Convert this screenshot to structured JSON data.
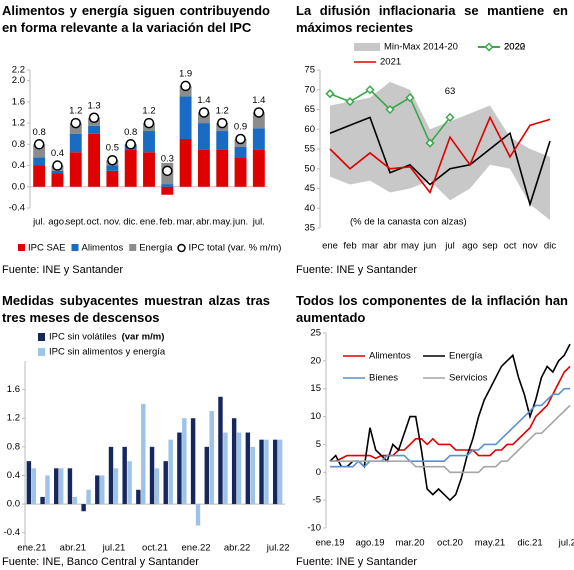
{
  "chart_data": [
    {
      "type": "bar",
      "stacked": true,
      "title": "Alimentos y energía siguen contribuyendo en forma relevante a la variación del IPC",
      "categories": [
        "jul.",
        "ago.",
        "sept.",
        "oct.",
        "nov.",
        "dic.",
        "ene.",
        "feb.",
        "mar.",
        "abr.",
        "may.",
        "jun.",
        "jul."
      ],
      "series": [
        {
          "name": "IPC SAE",
          "color": "#e00000",
          "values": [
            0.4,
            0.25,
            0.65,
            1.0,
            0.3,
            0.7,
            0.65,
            -0.15,
            0.9,
            0.7,
            0.7,
            0.55,
            0.7
          ]
        },
        {
          "name": "Alimentos",
          "color": "#1a6bc4",
          "values": [
            0.15,
            0.05,
            0.35,
            0.15,
            0.1,
            0.1,
            0.4,
            0.05,
            0.8,
            0.5,
            0.35,
            0.2,
            0.4
          ]
        },
        {
          "name": "Energía",
          "color": "#8c8c8c",
          "values": [
            0.25,
            0.1,
            0.2,
            0.15,
            0.1,
            0.0,
            0.15,
            0.4,
            0.2,
            0.2,
            0.15,
            0.15,
            0.3
          ]
        }
      ],
      "total": {
        "name": "IPC total (var. % m/m)",
        "values": [
          0.8,
          0.4,
          1.2,
          1.3,
          0.5,
          0.8,
          1.2,
          0.3,
          1.9,
          1.4,
          1.2,
          0.9,
          1.4
        ]
      },
      "ylim": [
        -0.4,
        2.2
      ],
      "yticks": [
        -0.4,
        {
          "value": 0,
          "label": "0.0"
        },
        0.4,
        0.8,
        1.2,
        1.6,
        {
          "value": 2,
          "label": "2.0"
        },
        2.2
      ],
      "source": "Fuente: INE y Santander"
    },
    {
      "type": "line",
      "title": "La difusión inflacionaria se mantiene en máximos recientes",
      "categories": [
        "ene",
        "feb",
        "mar",
        "abr",
        "may",
        "jun",
        "jul",
        "ago",
        "sep",
        "oct",
        "nov",
        "dic"
      ],
      "band": {
        "name": "Min-Max 2014-20",
        "color": "#c8c8c8",
        "low": [
          48,
          46,
          47,
          44,
          45,
          47,
          42,
          45,
          51,
          50,
          41,
          37
        ],
        "high": [
          66,
          67,
          68,
          72,
          70,
          60,
          62,
          64,
          66,
          58,
          55,
          53
        ]
      },
      "series": [
        {
          "name": "2020",
          "color": "#000000",
          "marker": false,
          "values": [
            59,
            61,
            63,
            49,
            51,
            46,
            50,
            51,
            55,
            59,
            41,
            57
          ]
        },
        {
          "name": "2021",
          "color": "#e00000",
          "marker": false,
          "values": [
            55,
            50,
            54,
            50,
            50.5,
            44,
            58,
            51,
            63,
            53,
            61,
            62.5
          ]
        },
        {
          "name": "2022",
          "color": "#3aa84a",
          "marker": true,
          "values": [
            69,
            67,
            70,
            65,
            68,
            56.5,
            63,
            null,
            null,
            null,
            null,
            null
          ]
        }
      ],
      "annotation": {
        "text": "63",
        "series": 2,
        "index": 6
      },
      "note": "(% de la canasta con alzas)",
      "ylim": [
        35,
        75
      ],
      "yticks": [
        35,
        40,
        45,
        50,
        55,
        60,
        65,
        70,
        75
      ],
      "source": "Fuente: INE y Santander"
    },
    {
      "type": "bar",
      "stacked": false,
      "title": "Medidas subyacentes muestran alzas tras tres meses de descensos",
      "categories": [
        "ene.21",
        null,
        null,
        "abr.21",
        null,
        null,
        "jul.21",
        null,
        null,
        "oct.21",
        null,
        null,
        "ene.22",
        null,
        null,
        "abr.22",
        null,
        null,
        "jul.22"
      ],
      "series": [
        {
          "name": "IPC sin volátiles",
          "color": "#16275e",
          "values": [
            0.6,
            0.1,
            0.5,
            0.5,
            -0.1,
            0.4,
            0.8,
            0.8,
            0.2,
            0.8,
            0.6,
            1.0,
            1.2,
            0.8,
            1.5,
            1.2,
            1.0,
            0.9,
            0.9
          ]
        },
        {
          "name": "IPC sin alimentos y energía",
          "color": "#9dc3e6",
          "values": [
            0.5,
            0.4,
            0.5,
            0.1,
            0.2,
            0.4,
            0.5,
            0.6,
            1.4,
            0.5,
            0.9,
            1.2,
            -0.3,
            1.3,
            1.0,
            1.0,
            0.8,
            0.9,
            0.9
          ]
        }
      ],
      "legend_unit": "(var m/m)",
      "ylim": [
        -0.6,
        2.0
      ],
      "yticks": [
        -0.4,
        {
          "value": 0,
          "label": "0.0"
        },
        0.4,
        0.8,
        1.2,
        1.6
      ],
      "source": "Fuente: INE, Banco Central y Santander"
    },
    {
      "type": "line",
      "title": "Todos los componentes de la inflación han aumentado",
      "categories": [
        "ene.19",
        null,
        null,
        null,
        null,
        null,
        null,
        "ago.19",
        null,
        null,
        null,
        null,
        null,
        null,
        "mar.20",
        null,
        null,
        null,
        null,
        null,
        null,
        "oct.20",
        null,
        null,
        null,
        null,
        null,
        null,
        "may.21",
        null,
        null,
        null,
        null,
        null,
        null,
        "dic.21",
        null,
        null,
        null,
        null,
        null,
        null,
        "jul.22"
      ],
      "series": [
        {
          "name": "Alimentos",
          "color": "#e00000",
          "values": [
            2,
            2,
            2.5,
            3,
            3,
            3,
            3,
            3,
            2.5,
            3,
            3,
            3,
            4,
            4,
            5,
            6,
            6,
            5,
            6,
            5,
            5,
            5,
            4,
            4,
            4,
            4,
            3,
            3,
            3,
            4,
            4,
            5,
            5,
            6,
            7,
            8,
            10,
            11,
            12,
            14,
            16,
            18,
            19
          ]
        },
        {
          "name": "Energía",
          "color": "#000000",
          "values": [
            2,
            3,
            1,
            1,
            2,
            2,
            1,
            8,
            4,
            3,
            2,
            5,
            4,
            7,
            10,
            10,
            4,
            -3,
            -4,
            -3,
            -4,
            -5,
            -4,
            -1,
            3,
            6,
            10,
            13,
            15,
            17,
            19,
            20,
            21,
            17,
            14,
            10,
            13,
            17,
            19,
            18,
            20,
            21,
            23
          ]
        },
        {
          "name": "Bienes",
          "color": "#5b8fd0",
          "values": [
            1,
            1,
            1,
            1,
            1,
            2,
            1,
            2,
            2,
            2,
            3,
            3,
            3,
            3,
            2,
            2,
            2,
            2,
            2,
            2,
            2,
            3,
            3,
            3,
            3,
            4,
            4,
            5,
            5,
            5,
            6,
            7,
            8,
            9,
            10,
            11,
            12,
            12,
            13,
            14,
            14,
            15,
            15
          ]
        },
        {
          "name": "Servicios",
          "color": "#a6a6a6",
          "values": [
            2,
            2,
            2,
            2,
            2,
            2,
            2,
            2,
            2,
            2,
            2,
            2,
            2,
            2,
            2,
            1,
            1,
            1,
            1,
            1,
            1,
            0,
            0,
            0,
            0,
            0,
            0,
            1,
            1,
            1,
            2,
            2,
            3,
            4,
            5,
            6,
            7,
            7,
            8,
            9,
            10,
            11,
            12
          ]
        }
      ],
      "ylim": [
        -10,
        25
      ],
      "yticks": [
        -10,
        -5,
        0,
        5,
        10,
        15,
        20,
        25
      ],
      "source": "Fuente: INE y Santander"
    }
  ]
}
